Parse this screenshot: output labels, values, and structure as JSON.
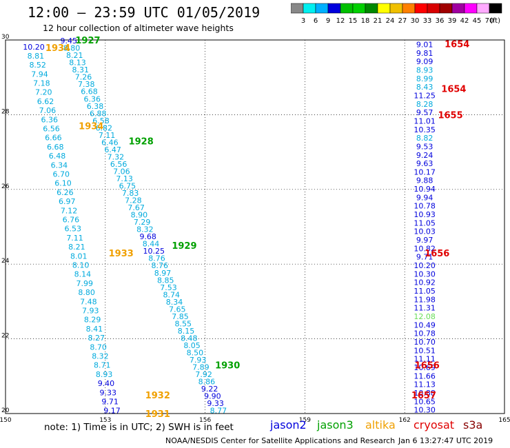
{
  "header": {
    "title": "12:00 – 23:59 UTC 01/05/2019",
    "subtitle": "12 hour collection of altimeter wave heights"
  },
  "scale": {
    "unit": "(ft)",
    "labels": [
      "3",
      "6",
      "9",
      "12",
      "15",
      "18",
      "21",
      "24",
      "27",
      "30",
      "33",
      "36",
      "39",
      "42",
      "45",
      "70"
    ],
    "colors": [
      "#888888",
      "#00f0f0",
      "#00b0ff",
      "#0000dd",
      "#00c000",
      "#00d000",
      "#008800",
      "#ffff00",
      "#f0c000",
      "#ff8000",
      "#ff0000",
      "#d80000",
      "#a00000",
      "#a000a0",
      "#ff00ff",
      "#ffaaff",
      "#000000"
    ]
  },
  "footer": {
    "note": "note: 1) Time is in UTC; 2) SWH is in feet",
    "credit": "NOAA/NESDIS Center for Satellite Applications and Research",
    "timestamp": "Jan  6 13:27:47 UTC 2019"
  },
  "satellites": [
    {
      "name": "jason2",
      "color": "#0000dd"
    },
    {
      "name": "jason3",
      "color": "#00a000"
    },
    {
      "name": "altika",
      "color": "#f0a000"
    },
    {
      "name": "cryosat",
      "color": "#e00000"
    },
    {
      "name": "s3a",
      "color": "#880000"
    }
  ],
  "chart_data": {
    "type": "scatter",
    "xlim": [
      150,
      165
    ],
    "ylim": [
      20,
      30
    ],
    "xticks": [
      150,
      153,
      156,
      159,
      162,
      165
    ],
    "yticks": [
      20,
      22,
      24,
      26,
      28,
      30
    ],
    "grid": true,
    "tracks": [
      {
        "name": "track-a",
        "x0": 150.85,
        "x1": 153.2,
        "y0": 29.82,
        "y1": 20.08,
        "values": [
          "10.20",
          "8.81",
          "8.52",
          "7.94",
          "7.18",
          "7.20",
          "6.62",
          "7.06",
          "6.36",
          "6.56",
          "6.66",
          "6.68",
          "6.48",
          "6.34",
          "6.70",
          "6.10",
          "6.26",
          "6.97",
          "7.12",
          "6.76",
          "6.53",
          "7.11",
          "8.21",
          "8.01",
          "8.10",
          "8.14",
          "7.99",
          "8.80",
          "7.48",
          "7.93",
          "8.29",
          "8.41",
          "8.27",
          "8.70",
          "8.32",
          "8.71",
          "8.93",
          "9.40",
          "9.33",
          "9.71",
          "9.17"
        ],
        "colors": [
          "b",
          "l",
          "l",
          "l",
          "l",
          "l",
          "l",
          "l",
          "l",
          "l",
          "l",
          "l",
          "l",
          "l",
          "l",
          "l",
          "l",
          "l",
          "l",
          "l",
          "l",
          "l",
          "l",
          "l",
          "l",
          "l",
          "l",
          "l",
          "l",
          "l",
          "l",
          "l",
          "l",
          "l",
          "l",
          "l",
          "l",
          "b",
          "b",
          "b",
          "b"
        ]
      },
      {
        "name": "track-b",
        "x0": 151.9,
        "x1": 156.4,
        "y0": 29.98,
        "y1": 20.08,
        "values": [
          "9.45",
          "8.80",
          "8.21",
          "8.13",
          "8.31",
          "7.26",
          "7.38",
          "6.68",
          "6.36",
          "6.38",
          "6.88",
          "6.58",
          "6.82",
          "7.11",
          "6.46",
          "6.47",
          "7.32",
          "6.56",
          "7.06",
          "7.13",
          "6.75",
          "7.83",
          "7.28",
          "7.67",
          "8.90",
          "7.29",
          "8.32",
          "9.68",
          "8.44",
          "10.25",
          "8.76",
          "8.76",
          "8.97",
          "8.85",
          "7.53",
          "8.74",
          "8.34",
          "7.65",
          "7.85",
          "8.55",
          "8.15",
          "8.48",
          "8.05",
          "8.50",
          "7.93",
          "7.89",
          "7.92",
          "8.86",
          "9.22",
          "9.90",
          "9.33",
          "8.77"
        ],
        "colors": [
          "b",
          "l",
          "l",
          "l",
          "l",
          "l",
          "l",
          "l",
          "l",
          "l",
          "l",
          "l",
          "l",
          "l",
          "l",
          "l",
          "l",
          "l",
          "l",
          "l",
          "l",
          "l",
          "l",
          "l",
          "l",
          "l",
          "l",
          "b",
          "l",
          "b",
          "l",
          "l",
          "l",
          "l",
          "l",
          "l",
          "l",
          "l",
          "l",
          "l",
          "l",
          "l",
          "l",
          "l",
          "l",
          "l",
          "l",
          "l",
          "b",
          "b",
          "b",
          "l"
        ]
      },
      {
        "name": "track-c",
        "x0": 162.6,
        "x1": 162.6,
        "y0": 29.88,
        "y1": 20.1,
        "values": [
          "9.01",
          "9.81",
          "9.09",
          "8.93",
          "8.99",
          "8.43",
          "11.25",
          "8.28",
          "9.57",
          "11.01",
          "10.35",
          "8.82",
          "9.53",
          "9.24",
          "9.63",
          "10.17",
          "9.88",
          "10.94",
          "9.94",
          "10.78",
          "10.93",
          "11.05",
          "10.03",
          "9.97",
          "10.82",
          "9.71",
          "10.20",
          "10.30",
          "10.92",
          "11.05",
          "11.98",
          "11.31",
          "12.08",
          "10.49",
          "10.78",
          "10.70",
          "10.51",
          "11.11",
          "10.69",
          "11.66",
          "11.13",
          "10.88",
          "10.65",
          "10.30"
        ],
        "colors": [
          "b",
          "b",
          "b",
          "l",
          "l",
          "l",
          "b",
          "l",
          "b",
          "b",
          "b",
          "l",
          "b",
          "b",
          "b",
          "b",
          "b",
          "b",
          "b",
          "b",
          "b",
          "b",
          "b",
          "b",
          "b",
          "b",
          "b",
          "b",
          "b",
          "b",
          "b",
          "b",
          "g",
          "b",
          "b",
          "b",
          "b",
          "b",
          "b",
          "b",
          "b",
          "b",
          "b",
          "b"
        ]
      }
    ],
    "time_labels": [
      {
        "text": "1927",
        "sat": "jason3",
        "lon": 152.1,
        "lat": 30.0
      },
      {
        "text": "1934",
        "sat": "altika",
        "lon": 151.2,
        "lat": 29.8
      },
      {
        "text": "1934",
        "sat": "altika",
        "lon": 152.2,
        "lat": 27.7
      },
      {
        "text": "1928",
        "sat": "jason3",
        "lon": 153.7,
        "lat": 27.3
      },
      {
        "text": "1929",
        "sat": "jason3",
        "lon": 155.0,
        "lat": 24.5
      },
      {
        "text": "1933",
        "sat": "altika",
        "lon": 153.1,
        "lat": 24.3
      },
      {
        "text": "1930",
        "sat": "jason3",
        "lon": 156.3,
        "lat": 21.3
      },
      {
        "text": "1932",
        "sat": "altika",
        "lon": 154.2,
        "lat": 20.5
      },
      {
        "text": "1931",
        "sat": "altika",
        "lon": 154.2,
        "lat": 20.0
      },
      {
        "text": "1654",
        "sat": "cryosat",
        "lon": 163.2,
        "lat": 29.9
      },
      {
        "text": "1654",
        "sat": "cryosat",
        "lon": 163.1,
        "lat": 28.7
      },
      {
        "text": "1655",
        "sat": "cryosat",
        "lon": 163.0,
        "lat": 28.0
      },
      {
        "text": "1656",
        "sat": "cryosat",
        "lon": 162.6,
        "lat": 24.3
      },
      {
        "text": "1656",
        "sat": "cryosat",
        "lon": 162.3,
        "lat": 21.3
      },
      {
        "text": "1657",
        "sat": "cryosat",
        "lon": 162.2,
        "lat": 20.5
      }
    ],
    "value_color_key": {
      "b": "#0000dd",
      "l": "#00aadd",
      "g": "#66dd55"
    }
  }
}
